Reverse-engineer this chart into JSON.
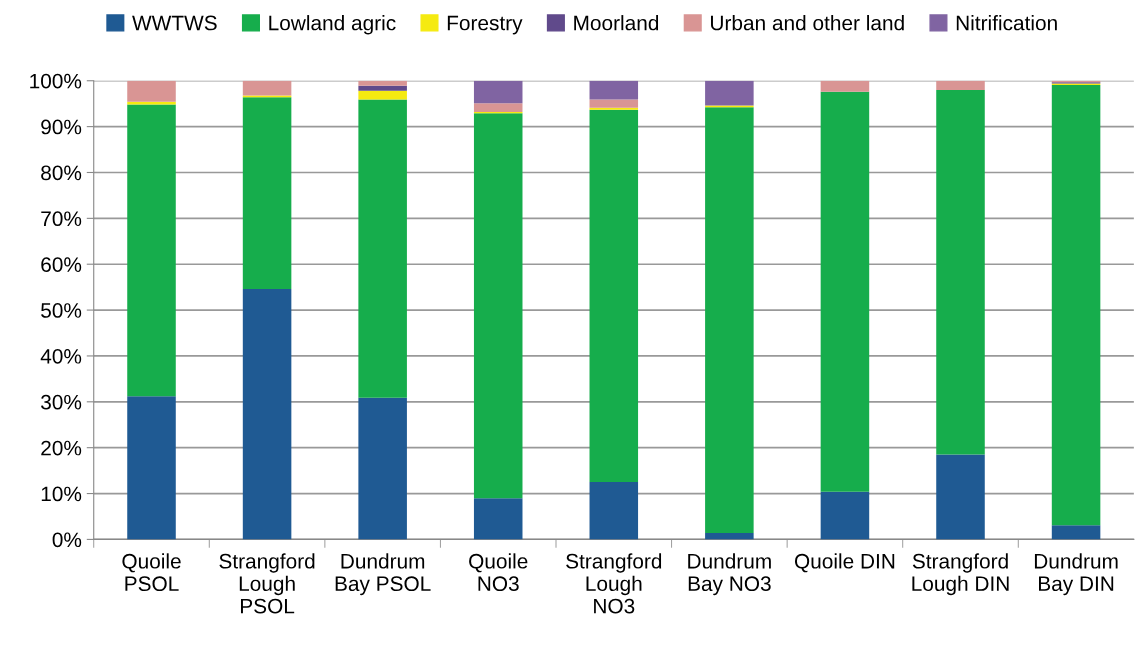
{
  "chart_data": {
    "type": "bar",
    "stacked": true,
    "categories": [
      "Quoile\nPSOL",
      "Strangford\nLough\nPSOL",
      "Dundrum\nBay PSOL",
      "Quoile\nNO3",
      "Strangford\nLough\nNO3",
      "Dundrum\nBay NO3",
      "Quoile DIN",
      "Strangford\nLough DIN",
      "Dundrum\nBay DIN"
    ],
    "series": [
      {
        "name": "WWTWS",
        "color": "#1f5a93",
        "values": [
          31.2,
          54.6,
          30.9,
          9.0,
          12.5,
          1.4,
          10.4,
          18.5,
          3.1
        ]
      },
      {
        "name": "Lowland agric",
        "color": "#16ad4c",
        "values": [
          63.6,
          41.8,
          65.0,
          83.9,
          81.2,
          92.8,
          87.2,
          79.5,
          96.0
        ]
      },
      {
        "name": "Forestry",
        "color": "#f5ea10",
        "values": [
          0.6,
          0.4,
          1.9,
          0.3,
          0.4,
          0.4,
          0,
          0,
          0.3
        ]
      },
      {
        "name": "Moorland",
        "color": "#604a8b",
        "values": [
          0,
          0,
          1.1,
          0,
          0,
          0,
          0,
          0,
          0.3
        ]
      },
      {
        "name": "Urban and other land",
        "color": "#d99594",
        "values": [
          4.6,
          3.2,
          1.1,
          1.9,
          1.8,
          0,
          2.4,
          2.0,
          0.3
        ]
      },
      {
        "name": "Nitrification",
        "color": "#8064a2",
        "values": [
          0,
          0,
          0,
          4.9,
          4.1,
          5.4,
          0,
          0,
          0
        ]
      }
    ],
    "ylim": [
      0,
      100
    ],
    "yticks": [
      {
        "value": 0,
        "label": "0%"
      },
      {
        "value": 10,
        "label": "10%"
      },
      {
        "value": 20,
        "label": "20%"
      },
      {
        "value": 30,
        "label": "30%"
      },
      {
        "value": 40,
        "label": "40%"
      },
      {
        "value": 50,
        "label": "50%"
      },
      {
        "value": 60,
        "label": "60%"
      },
      {
        "value": 70,
        "label": "70%"
      },
      {
        "value": 80,
        "label": "80%"
      },
      {
        "value": 90,
        "label": "90%"
      },
      {
        "value": 100,
        "label": "100%"
      }
    ],
    "grid": "y",
    "legend": "top"
  }
}
